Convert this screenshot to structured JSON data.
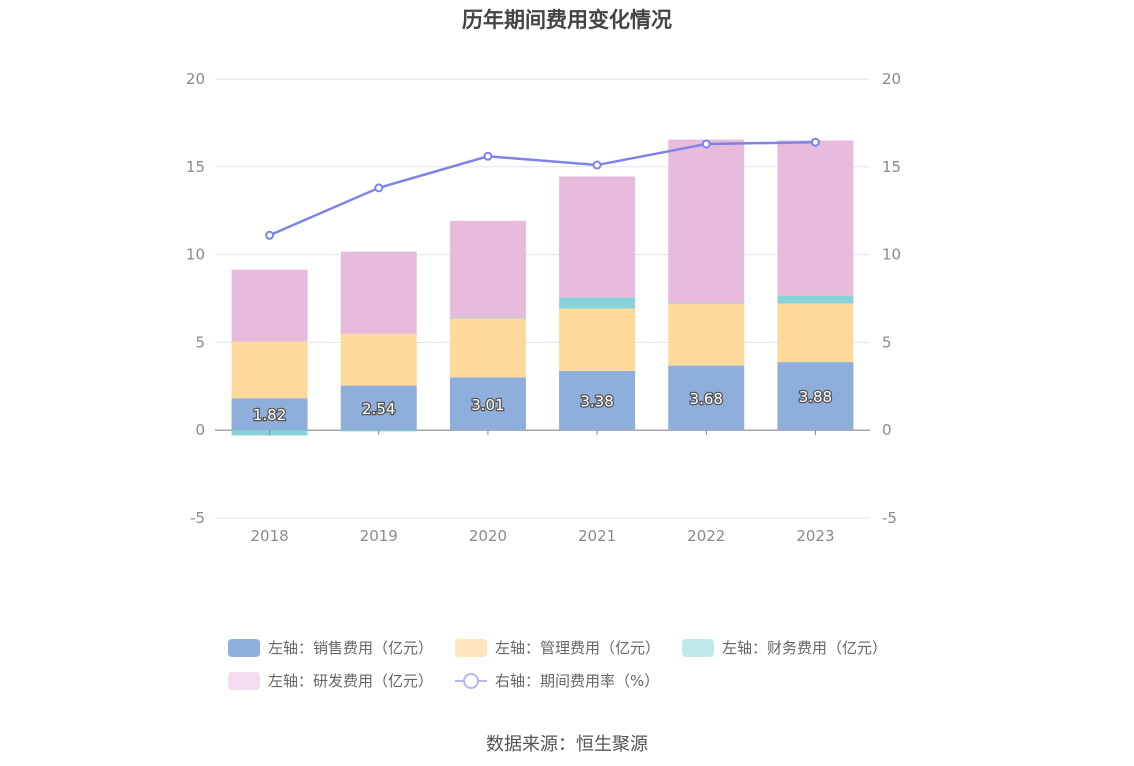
{
  "chart_data": {
    "type": "bar",
    "title": "历年期间费用变化情况",
    "categories": [
      "2018",
      "2019",
      "2020",
      "2021",
      "2022",
      "2023"
    ],
    "series": [
      {
        "name": "左轴：销售费用（亿元）",
        "color": "#8eaedc",
        "axis": "left",
        "values": [
          1.82,
          2.54,
          3.01,
          3.38,
          3.68,
          3.88
        ]
      },
      {
        "name": "左轴：管理费用（亿元）",
        "color": "#ffd99b",
        "axis": "left",
        "values": [
          3.22,
          2.95,
          3.39,
          3.55,
          3.53,
          3.33
        ]
      },
      {
        "name": "左轴：财务费用（亿元）",
        "color": "#86d4da",
        "axis": "left",
        "values": [
          -0.3,
          -0.07,
          0.02,
          0.62,
          0.04,
          0.44
        ]
      },
      {
        "name": "左轴：研发费用（亿元）",
        "color": "#e8bbdc",
        "axis": "left",
        "values": [
          4.1,
          4.68,
          5.5,
          6.9,
          9.3,
          8.85
        ]
      },
      {
        "name": "右轴：期间费用率（%）",
        "color": "#7e83e8",
        "axis": "right",
        "type": "line",
        "values": [
          11.1,
          13.8,
          15.6,
          15.1,
          16.3,
          16.4
        ]
      }
    ],
    "data_labels": [
      "1.82",
      "2.54",
      "3.01",
      "3.38",
      "3.68",
      "3.88"
    ],
    "y_ticks": [
      "20",
      "15",
      "10",
      "5",
      "0",
      "-5"
    ],
    "y_right_ticks": [
      "20",
      "15",
      "10",
      "5",
      "0",
      "-5"
    ],
    "ylim": [
      -5,
      20
    ],
    "y2lim": [
      -5,
      20
    ],
    "grid": true,
    "legend_position": "bottom"
  },
  "source": "数据来源：恒生聚源"
}
